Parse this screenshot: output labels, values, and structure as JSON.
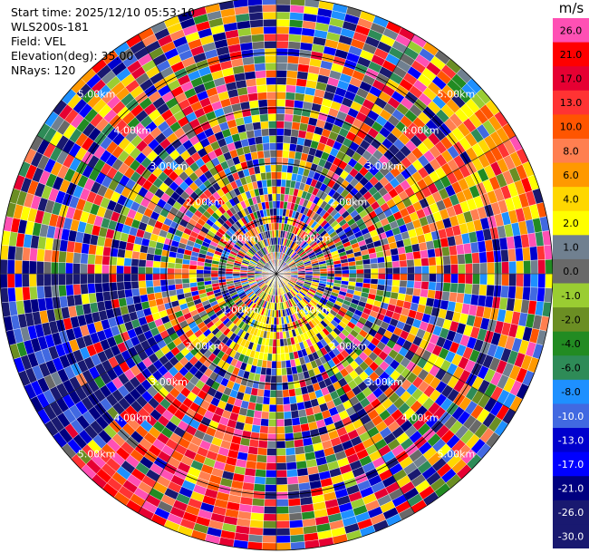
{
  "header": {
    "start_time": "Start time: 2025/12/10 05:53:10",
    "site": "WLS200s-181",
    "field": "Field: VEL",
    "elevation": "Elevation(deg): 35.00",
    "nrays": "NRays: 120"
  },
  "chart_data": {
    "type": "heatmap",
    "projection": "polar",
    "field": "VEL",
    "nrays": 120,
    "range_rings_km": [
      1.0,
      2.0,
      3.0,
      4.0,
      5.0
    ],
    "range_ring_labels": [
      "1.00km",
      "2.00km",
      "3.00km",
      "4.00km",
      "5.00km"
    ],
    "colorbar": {
      "unit": "m/s",
      "tick_labels": [
        "26.0",
        "21.0",
        "17.0",
        "13.0",
        "10.0",
        "8.0",
        "6.0",
        "4.0",
        "2.0",
        "1.0",
        "0.0",
        "-1.0",
        "-2.0",
        "-4.0",
        "-6.0",
        "-8.0",
        "-10.0",
        "-13.0",
        "-17.0",
        "-21.0",
        "-26.0",
        "-30.0"
      ],
      "colors": [
        "#ff50b4",
        "#ff0000",
        "#e60032",
        "#ff3333",
        "#ff5500",
        "#ff7f50",
        "#ff9900",
        "#ffd700",
        "#ffff00",
        "#708090",
        "#696969",
        "#9acd32",
        "#6b8e23",
        "#228b22",
        "#2e8b57",
        "#1e90ff",
        "#4169e1",
        "#0000cd",
        "#0000ff",
        "#000080",
        "#191970",
        "#191970"
      ]
    }
  }
}
